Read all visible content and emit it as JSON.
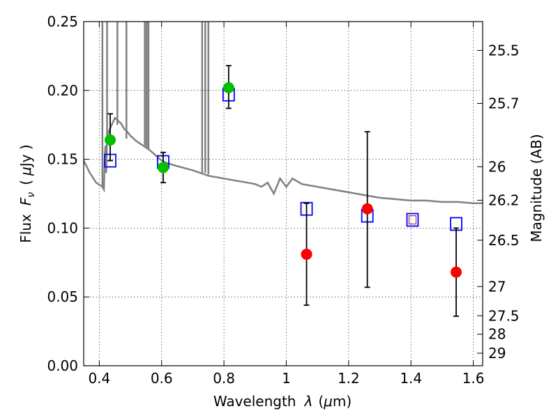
{
  "chart_data": {
    "type": "scatter",
    "xlabel_text": "Wavelength",
    "xlabel_symbol": "λ",
    "xlabel_unit_open": "(",
    "xlabel_unit_mu": "μ",
    "xlabel_unit_rest": "m)",
    "ylabel_text": "Flux",
    "ylabel_symbol": "F",
    "ylabel_subscript": "ν",
    "ylabel_unit_open": "(",
    "ylabel_unit_mu": "μ",
    "ylabel_unit_rest": "Jy )",
    "y2label": "Magnitude (AB)",
    "xlim": [
      0.35,
      1.63
    ],
    "ylim": [
      0.0,
      0.25
    ],
    "grid": true,
    "x_ticks": [
      {
        "value": 0.4,
        "label": "0.4"
      },
      {
        "value": 0.6,
        "label": "0.6"
      },
      {
        "value": 0.8,
        "label": "0.8"
      },
      {
        "value": 1.0,
        "label": "1"
      },
      {
        "value": 1.2,
        "label": "1.2"
      },
      {
        "value": 1.4,
        "label": "1.4"
      },
      {
        "value": 1.6,
        "label": "1.6"
      }
    ],
    "y_ticks": [
      {
        "value": 0.0,
        "label": "0.00"
      },
      {
        "value": 0.05,
        "label": "0.05"
      },
      {
        "value": 0.1,
        "label": "0.10"
      },
      {
        "value": 0.15,
        "label": "0.15"
      },
      {
        "value": 0.2,
        "label": "0.20"
      },
      {
        "value": 0.25,
        "label": "0.25"
      }
    ],
    "y2_ticks": [
      {
        "value": 25.5,
        "label": "25.5"
      },
      {
        "value": 25.7,
        "label": "25.7"
      },
      {
        "value": 26,
        "label": "26"
      },
      {
        "value": 26.2,
        "label": "26.2"
      },
      {
        "value": 26.5,
        "label": "26.5"
      },
      {
        "value": 27,
        "label": "27"
      },
      {
        "value": 27.5,
        "label": "27.5"
      },
      {
        "value": 28,
        "label": "28"
      },
      {
        "value": 29,
        "label": "29"
      }
    ],
    "colors": {
      "sed_line": "#808080",
      "model_squares": "#0000ff",
      "space_points": "#00c000",
      "ground_points": "#ff0000",
      "errorbar": "#000000",
      "small_square": "#b03060"
    },
    "sed_line": {
      "x": [
        0.35,
        0.37,
        0.39,
        0.41,
        0.415,
        0.418,
        0.42,
        0.422,
        0.425,
        0.43,
        0.44,
        0.45,
        0.46,
        0.47,
        0.48,
        0.49,
        0.5,
        0.52,
        0.54,
        0.56,
        0.58,
        0.6,
        0.62,
        0.65,
        0.7,
        0.75,
        0.8,
        0.85,
        0.9,
        0.92,
        0.94,
        0.96,
        0.98,
        1.0,
        1.02,
        1.05,
        1.1,
        1.15,
        1.2,
        1.25,
        1.3,
        1.35,
        1.4,
        1.45,
        1.5,
        1.55,
        1.6,
        1.63
      ],
      "y": [
        0.149,
        0.14,
        0.133,
        0.13,
        0.128,
        0.155,
        0.16,
        0.14,
        0.165,
        0.17,
        0.175,
        0.18,
        0.178,
        0.176,
        0.172,
        0.17,
        0.167,
        0.163,
        0.16,
        0.157,
        0.153,
        0.149,
        0.147,
        0.145,
        0.142,
        0.138,
        0.136,
        0.134,
        0.132,
        0.13,
        0.133,
        0.125,
        0.136,
        0.13,
        0.136,
        0.132,
        0.13,
        0.128,
        0.126,
        0.124,
        0.122,
        0.121,
        0.12,
        0.12,
        0.119,
        0.119,
        0.118,
        0.118
      ]
    },
    "sed_spikes": [
      {
        "x": 0.41,
        "ybase": 0.13
      },
      {
        "x": 0.425,
        "ybase": 0.165
      },
      {
        "x": 0.458,
        "ybase": 0.175
      },
      {
        "x": 0.487,
        "ybase": 0.165
      },
      {
        "x": 0.546,
        "ybase": 0.16
      },
      {
        "x": 0.552,
        "ybase": 0.158
      },
      {
        "x": 0.558,
        "ybase": 0.157
      },
      {
        "x": 0.73,
        "ybase": 0.14
      },
      {
        "x": 0.74,
        "ybase": 0.14
      },
      {
        "x": 0.75,
        "ybase": 0.139
      }
    ],
    "series": [
      {
        "marker": "square",
        "x": [
          0.435,
          0.605,
          0.815,
          1.065,
          1.26,
          1.405,
          1.545
        ],
        "y": [
          0.149,
          0.148,
          0.197,
          0.114,
          0.109,
          0.106,
          0.103
        ]
      },
      {
        "marker": "circle-green",
        "x": [
          0.435,
          0.605,
          0.815
        ],
        "y": [
          0.164,
          0.144,
          0.202
        ],
        "yerr_low": [
          0.149,
          0.133,
          0.187
        ],
        "yerr_high": [
          0.183,
          0.155,
          0.218
        ]
      },
      {
        "marker": "circle-red",
        "x": [
          1.065,
          1.26,
          1.545
        ],
        "y": [
          0.081,
          0.114,
          0.068
        ],
        "yerr_low": [
          0.044,
          0.057,
          0.036
        ],
        "yerr_high": [
          0.118,
          0.17,
          0.1
        ]
      }
    ],
    "small_square": {
      "x": 1.405,
      "y": 0.106
    }
  }
}
